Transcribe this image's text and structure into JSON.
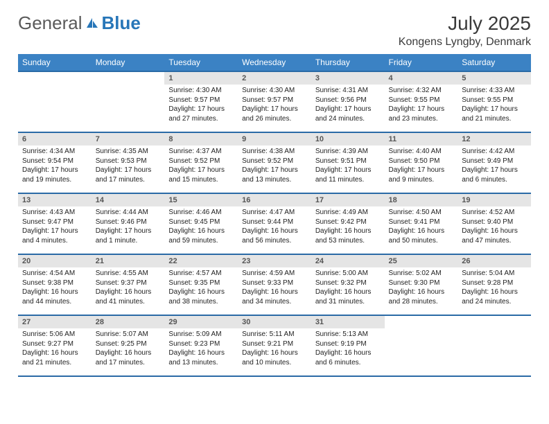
{
  "brand": {
    "name_a": "General",
    "name_b": "Blue"
  },
  "title": "July 2025",
  "location": "Kongens Lyngby, Denmark",
  "colors": {
    "header_bg": "#3b82c4",
    "header_border": "#2a6aa6",
    "daynum_bg": "#e5e5e5",
    "text": "#222222"
  },
  "daynames": [
    "Sunday",
    "Monday",
    "Tuesday",
    "Wednesday",
    "Thursday",
    "Friday",
    "Saturday"
  ],
  "weeks": [
    [
      null,
      null,
      {
        "n": "1",
        "sr": "4:30 AM",
        "ss": "9:57 PM",
        "dl": "17 hours and 27 minutes."
      },
      {
        "n": "2",
        "sr": "4:30 AM",
        "ss": "9:57 PM",
        "dl": "17 hours and 26 minutes."
      },
      {
        "n": "3",
        "sr": "4:31 AM",
        "ss": "9:56 PM",
        "dl": "17 hours and 24 minutes."
      },
      {
        "n": "4",
        "sr": "4:32 AM",
        "ss": "9:55 PM",
        "dl": "17 hours and 23 minutes."
      },
      {
        "n": "5",
        "sr": "4:33 AM",
        "ss": "9:55 PM",
        "dl": "17 hours and 21 minutes."
      }
    ],
    [
      {
        "n": "6",
        "sr": "4:34 AM",
        "ss": "9:54 PM",
        "dl": "17 hours and 19 minutes."
      },
      {
        "n": "7",
        "sr": "4:35 AM",
        "ss": "9:53 PM",
        "dl": "17 hours and 17 minutes."
      },
      {
        "n": "8",
        "sr": "4:37 AM",
        "ss": "9:52 PM",
        "dl": "17 hours and 15 minutes."
      },
      {
        "n": "9",
        "sr": "4:38 AM",
        "ss": "9:52 PM",
        "dl": "17 hours and 13 minutes."
      },
      {
        "n": "10",
        "sr": "4:39 AM",
        "ss": "9:51 PM",
        "dl": "17 hours and 11 minutes."
      },
      {
        "n": "11",
        "sr": "4:40 AM",
        "ss": "9:50 PM",
        "dl": "17 hours and 9 minutes."
      },
      {
        "n": "12",
        "sr": "4:42 AM",
        "ss": "9:49 PM",
        "dl": "17 hours and 6 minutes."
      }
    ],
    [
      {
        "n": "13",
        "sr": "4:43 AM",
        "ss": "9:47 PM",
        "dl": "17 hours and 4 minutes."
      },
      {
        "n": "14",
        "sr": "4:44 AM",
        "ss": "9:46 PM",
        "dl": "17 hours and 1 minute."
      },
      {
        "n": "15",
        "sr": "4:46 AM",
        "ss": "9:45 PM",
        "dl": "16 hours and 59 minutes."
      },
      {
        "n": "16",
        "sr": "4:47 AM",
        "ss": "9:44 PM",
        "dl": "16 hours and 56 minutes."
      },
      {
        "n": "17",
        "sr": "4:49 AM",
        "ss": "9:42 PM",
        "dl": "16 hours and 53 minutes."
      },
      {
        "n": "18",
        "sr": "4:50 AM",
        "ss": "9:41 PM",
        "dl": "16 hours and 50 minutes."
      },
      {
        "n": "19",
        "sr": "4:52 AM",
        "ss": "9:40 PM",
        "dl": "16 hours and 47 minutes."
      }
    ],
    [
      {
        "n": "20",
        "sr": "4:54 AM",
        "ss": "9:38 PM",
        "dl": "16 hours and 44 minutes."
      },
      {
        "n": "21",
        "sr": "4:55 AM",
        "ss": "9:37 PM",
        "dl": "16 hours and 41 minutes."
      },
      {
        "n": "22",
        "sr": "4:57 AM",
        "ss": "9:35 PM",
        "dl": "16 hours and 38 minutes."
      },
      {
        "n": "23",
        "sr": "4:59 AM",
        "ss": "9:33 PM",
        "dl": "16 hours and 34 minutes."
      },
      {
        "n": "24",
        "sr": "5:00 AM",
        "ss": "9:32 PM",
        "dl": "16 hours and 31 minutes."
      },
      {
        "n": "25",
        "sr": "5:02 AM",
        "ss": "9:30 PM",
        "dl": "16 hours and 28 minutes."
      },
      {
        "n": "26",
        "sr": "5:04 AM",
        "ss": "9:28 PM",
        "dl": "16 hours and 24 minutes."
      }
    ],
    [
      {
        "n": "27",
        "sr": "5:06 AM",
        "ss": "9:27 PM",
        "dl": "16 hours and 21 minutes."
      },
      {
        "n": "28",
        "sr": "5:07 AM",
        "ss": "9:25 PM",
        "dl": "16 hours and 17 minutes."
      },
      {
        "n": "29",
        "sr": "5:09 AM",
        "ss": "9:23 PM",
        "dl": "16 hours and 13 minutes."
      },
      {
        "n": "30",
        "sr": "5:11 AM",
        "ss": "9:21 PM",
        "dl": "16 hours and 10 minutes."
      },
      {
        "n": "31",
        "sr": "5:13 AM",
        "ss": "9:19 PM",
        "dl": "16 hours and 6 minutes."
      },
      null,
      null
    ]
  ],
  "labels": {
    "sunrise": "Sunrise:",
    "sunset": "Sunset:",
    "daylight": "Daylight:"
  }
}
